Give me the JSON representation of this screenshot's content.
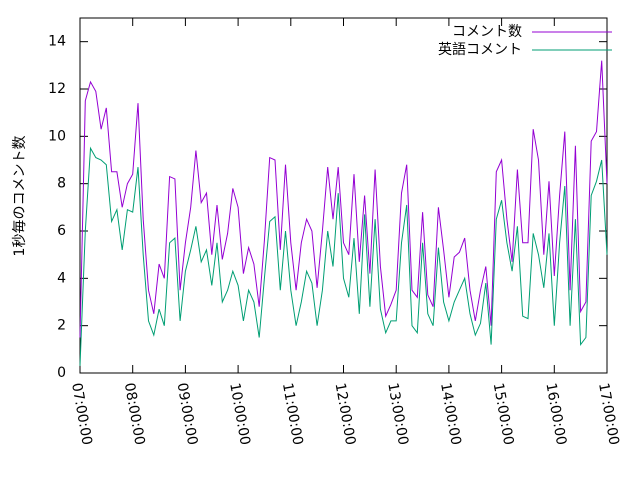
{
  "chart_data": {
    "type": "line",
    "ylabel": "1秒毎のコメント数",
    "xlim": [
      "07:00:00",
      "17:00:00"
    ],
    "xticks": [
      "07:00:00",
      "08:00:00",
      "09:00:00",
      "10:00:00",
      "11:00:00",
      "12:00:00",
      "13:00:00",
      "14:00:00",
      "15:00:00",
      "16:00:00",
      "17:00:00"
    ],
    "ylim": [
      0,
      15
    ],
    "yticks": [
      0,
      2,
      4,
      6,
      8,
      10,
      12,
      14
    ],
    "legend": "top-right",
    "x": [
      "07:00:00",
      "07:06:00",
      "07:12:00",
      "07:18:00",
      "07:24:00",
      "07:30:00",
      "07:36:00",
      "07:42:00",
      "07:48:00",
      "07:54:00",
      "08:00:00",
      "08:06:00",
      "08:12:00",
      "08:18:00",
      "08:24:00",
      "08:30:00",
      "08:36:00",
      "08:42:00",
      "08:48:00",
      "08:54:00",
      "09:00:00",
      "09:06:00",
      "09:12:00",
      "09:18:00",
      "09:24:00",
      "09:30:00",
      "09:36:00",
      "09:42:00",
      "09:48:00",
      "09:54:00",
      "10:00:00",
      "10:06:00",
      "10:12:00",
      "10:18:00",
      "10:24:00",
      "10:30:00",
      "10:36:00",
      "10:42:00",
      "10:48:00",
      "10:54:00",
      "11:00:00",
      "11:06:00",
      "11:12:00",
      "11:18:00",
      "11:24:00",
      "11:30:00",
      "11:36:00",
      "11:42:00",
      "11:48:00",
      "11:54:00",
      "12:00:00",
      "12:06:00",
      "12:12:00",
      "12:18:00",
      "12:24:00",
      "12:30:00",
      "12:36:00",
      "12:42:00",
      "12:48:00",
      "12:54:00",
      "13:00:00",
      "13:06:00",
      "13:12:00",
      "13:18:00",
      "13:24:00",
      "13:30:00",
      "13:36:00",
      "13:42:00",
      "13:48:00",
      "13:54:00",
      "14:00:00",
      "14:06:00",
      "14:12:00",
      "14:18:00",
      "14:24:00",
      "14:30:00",
      "14:36:00",
      "14:42:00",
      "14:48:00",
      "14:54:00",
      "15:00:00",
      "15:06:00",
      "15:12:00",
      "15:18:00",
      "15:24:00",
      "15:30:00",
      "15:36:00",
      "15:42:00",
      "15:48:00",
      "15:54:00",
      "16:00:00",
      "16:06:00",
      "16:12:00",
      "16:18:00",
      "16:24:00",
      "16:30:00",
      "16:36:00",
      "16:42:00",
      "16:48:00",
      "16:54:00",
      "17:00:00"
    ],
    "series": [
      {
        "name": "コメント数",
        "color": "#9400d3",
        "values": [
          1.5,
          11.5,
          12.3,
          11.9,
          10.3,
          11.2,
          8.5,
          8.5,
          7.0,
          8.0,
          8.4,
          11.4,
          6.5,
          3.5,
          2.5,
          4.6,
          4.0,
          8.3,
          8.2,
          3.5,
          5.5,
          7.0,
          9.4,
          7.2,
          7.6,
          5.0,
          7.1,
          4.8,
          5.9,
          7.8,
          7.0,
          4.2,
          5.3,
          4.6,
          2.8,
          5.6,
          9.1,
          9.0,
          5.2,
          8.8,
          5.5,
          3.5,
          5.5,
          6.5,
          6.0,
          3.6,
          6.0,
          8.7,
          6.5,
          8.7,
          5.5,
          5.0,
          8.4,
          4.7,
          7.5,
          4.2,
          8.6,
          4.5,
          2.4,
          2.9,
          3.5,
          7.6,
          8.8,
          3.5,
          3.2,
          6.8,
          3.3,
          2.8,
          7.0,
          5.2,
          3.2,
          4.9,
          5.1,
          5.7,
          3.5,
          2.2,
          3.5,
          4.5,
          2.0,
          8.5,
          9.0,
          6.5,
          4.7,
          8.6,
          5.5,
          5.5,
          10.3,
          9.0,
          5.0,
          8.1,
          4.1,
          7.5,
          10.2,
          3.5,
          9.6,
          2.6,
          3.0,
          9.8,
          10.2,
          13.2,
          8.0
        ]
      },
      {
        "name": "英語コメント",
        "color": "#009e73",
        "values": [
          0.3,
          6.0,
          9.5,
          9.1,
          9.0,
          8.8,
          6.4,
          6.9,
          5.2,
          6.9,
          6.8,
          8.7,
          5.0,
          2.2,
          1.6,
          2.7,
          2.0,
          5.5,
          5.7,
          2.2,
          4.3,
          5.2,
          6.2,
          4.7,
          5.2,
          3.7,
          5.5,
          3.0,
          3.5,
          4.3,
          3.7,
          2.2,
          3.5,
          3.0,
          1.5,
          4.0,
          6.4,
          6.6,
          3.5,
          6.0,
          3.5,
          2.0,
          3.0,
          4.3,
          3.8,
          2.0,
          3.5,
          6.0,
          4.5,
          7.6,
          4.0,
          3.2,
          5.7,
          2.5,
          6.7,
          2.8,
          6.5,
          2.7,
          1.7,
          2.2,
          2.2,
          5.5,
          7.1,
          2.0,
          1.7,
          5.5,
          2.5,
          2.0,
          5.3,
          3.0,
          2.2,
          3.0,
          3.5,
          4.0,
          2.5,
          1.6,
          2.1,
          3.8,
          1.2,
          6.5,
          7.3,
          5.5,
          4.3,
          6.2,
          2.4,
          2.3,
          5.9,
          5.0,
          3.6,
          5.9,
          2.0,
          5.5,
          7.9,
          2.0,
          6.5,
          1.2,
          1.5,
          7.5,
          8.1,
          9.0,
          5.0
        ]
      }
    ]
  }
}
